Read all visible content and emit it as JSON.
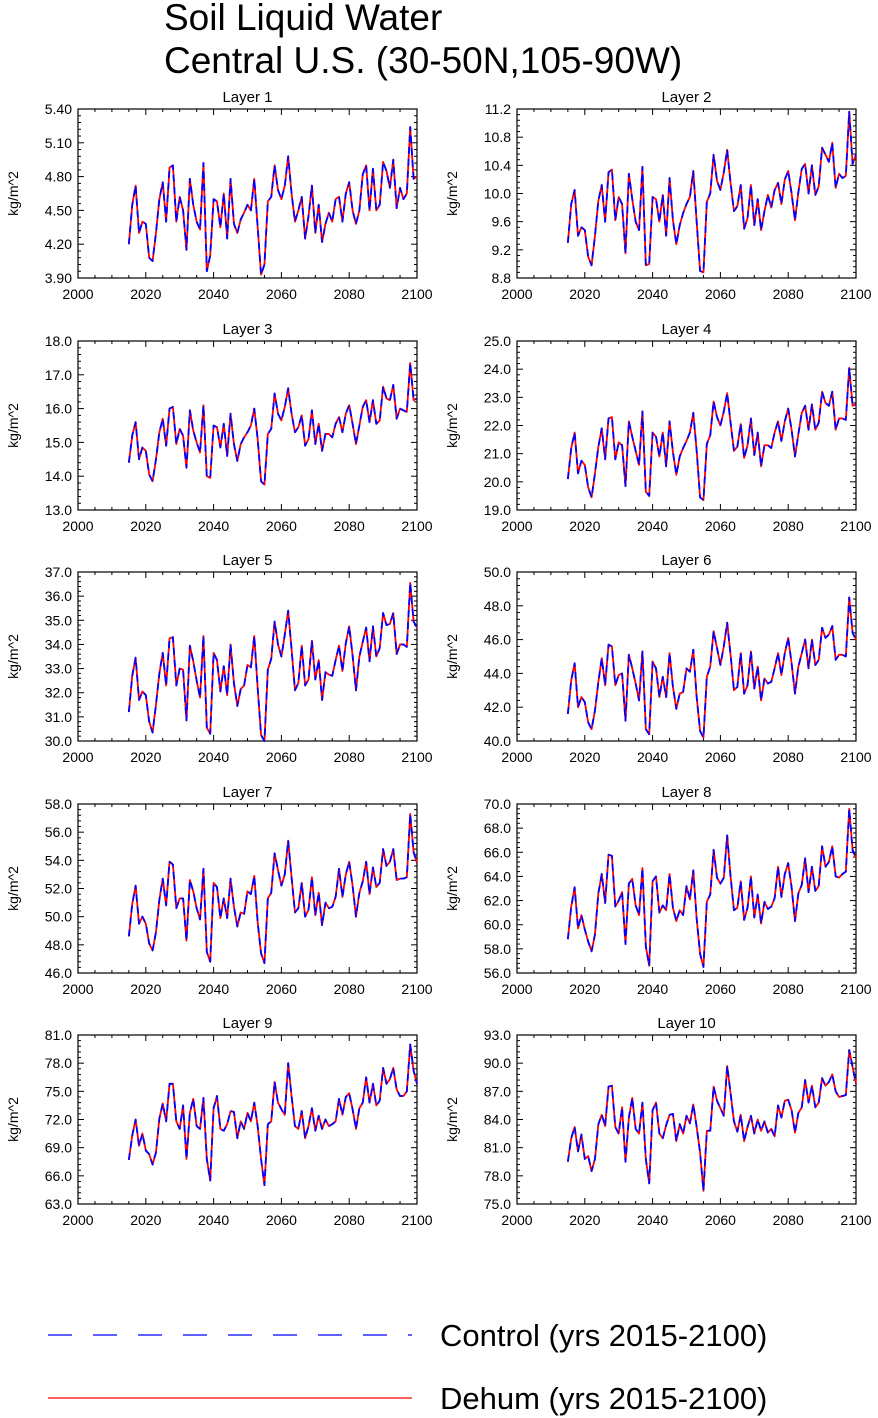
{
  "title_line1": "Soil Liquid Water",
  "title_line2": "Central U.S. (30-50N,105-90W)",
  "chart_data": {
    "type": "line",
    "x_label": "",
    "y_label": "kg/m^2",
    "xlim": [
      2000,
      2100
    ],
    "x_ticks": [
      2000,
      2020,
      2040,
      2060,
      2080,
      2100
    ],
    "x_tick_labels": [
      "2000",
      "2020",
      "2040",
      "2060",
      "2080",
      "2100"
    ],
    "years_start": 2015,
    "years_end": 2100,
    "legend_position": "bottom",
    "series_styles": [
      {
        "name": "Control (yrs 2015-2100)",
        "color": "#0000ff",
        "dash": "dashed"
      },
      {
        "name": "Dehum (yrs 2015-2100)",
        "color": "#ff0000",
        "dash": "solid"
      }
    ],
    "panels": [
      {
        "title": "Layer 1",
        "ylim": [
          3.9,
          5.4
        ],
        "y_ticks": [
          3.9,
          4.2,
          4.5,
          4.8,
          5.1,
          5.4
        ],
        "y_tick_labels": [
          "3.90",
          "4.20",
          "4.50",
          "4.80",
          "5.10",
          "5.40"
        ],
        "values": [
          4.2,
          4.55,
          4.72,
          4.3,
          4.4,
          4.38,
          4.08,
          4.05,
          4.3,
          4.6,
          4.75,
          4.4,
          4.88,
          4.9,
          4.4,
          4.62,
          4.5,
          4.15,
          4.78,
          4.55,
          4.4,
          4.33,
          4.92,
          3.96,
          4.1,
          4.6,
          4.58,
          4.35,
          4.65,
          4.25,
          4.78,
          4.38,
          4.3,
          4.42,
          4.48,
          4.55,
          4.5,
          4.78,
          4.35,
          3.93,
          4.02,
          4.58,
          4.62,
          4.9,
          4.68,
          4.6,
          4.72,
          4.98,
          4.65,
          4.4,
          4.5,
          4.62,
          4.25,
          4.45,
          4.72,
          4.3,
          4.55,
          4.22,
          4.38,
          4.48,
          4.4,
          4.6,
          4.62,
          4.4,
          4.65,
          4.75,
          4.5,
          4.38,
          4.5,
          4.82,
          4.9,
          4.5,
          4.87,
          4.5,
          4.55,
          4.93,
          4.85,
          4.7,
          4.95,
          4.52,
          4.7,
          4.6,
          4.65,
          5.24,
          4.78,
          4.8
        ]
      },
      {
        "title": "Layer 2",
        "ylim": [
          8.8,
          11.2
        ],
        "y_ticks": [
          8.8,
          9.2,
          9.6,
          10.0,
          10.4,
          10.8,
          11.2
        ],
        "y_tick_labels": [
          "8.8",
          "9.2",
          "9.6",
          "10.0",
          "10.4",
          "10.8",
          "11.2"
        ],
        "values": [
          9.3,
          9.85,
          10.05,
          9.4,
          9.52,
          9.48,
          9.1,
          8.98,
          9.4,
          9.9,
          10.12,
          9.6,
          10.3,
          10.34,
          9.62,
          9.95,
          9.85,
          9.15,
          10.28,
          9.92,
          9.6,
          9.48,
          10.38,
          8.98,
          9.0,
          9.95,
          9.92,
          9.6,
          9.98,
          9.4,
          10.22,
          9.62,
          9.28,
          9.55,
          9.72,
          9.85,
          9.95,
          10.32,
          9.6,
          8.9,
          8.88,
          9.88,
          10.0,
          10.55,
          10.18,
          10.05,
          10.3,
          10.62,
          10.15,
          9.75,
          9.82,
          10.12,
          9.5,
          9.65,
          10.12,
          9.55,
          9.92,
          9.48,
          9.75,
          9.98,
          9.8,
          10.05,
          10.15,
          9.85,
          10.2,
          10.32,
          10.0,
          9.62,
          10.02,
          10.35,
          10.42,
          10.0,
          10.4,
          9.98,
          10.1,
          10.65,
          10.55,
          10.45,
          10.72,
          10.08,
          10.28,
          10.22,
          10.25,
          11.16,
          10.42,
          10.55
        ]
      },
      {
        "title": "Layer 3",
        "ylim": [
          13.0,
          18.0
        ],
        "y_ticks": [
          13,
          14,
          15,
          16,
          17,
          18
        ],
        "y_tick_labels": [
          "13.0",
          "14.0",
          "15.0",
          "16.0",
          "17.0",
          "18.0"
        ],
        "values": [
          14.4,
          15.2,
          15.6,
          14.5,
          14.85,
          14.75,
          14.05,
          13.85,
          14.5,
          15.3,
          15.7,
          14.9,
          16.0,
          16.05,
          14.95,
          15.4,
          15.2,
          14.25,
          15.95,
          15.35,
          15.0,
          14.7,
          16.1,
          14.0,
          13.95,
          15.5,
          15.45,
          14.85,
          15.55,
          14.6,
          15.85,
          14.95,
          14.45,
          14.95,
          15.15,
          15.3,
          15.5,
          16.0,
          15.1,
          13.85,
          13.75,
          15.25,
          15.4,
          16.45,
          15.85,
          15.65,
          16.05,
          16.6,
          15.85,
          15.3,
          15.45,
          15.8,
          14.9,
          15.1,
          15.95,
          14.95,
          15.55,
          14.75,
          15.25,
          15.25,
          15.15,
          15.55,
          15.75,
          15.3,
          15.85,
          16.1,
          15.55,
          14.95,
          15.5,
          16.05,
          16.25,
          15.6,
          16.25,
          15.55,
          15.65,
          16.65,
          16.3,
          16.25,
          16.7,
          15.7,
          16.0,
          15.95,
          15.9,
          17.35,
          16.25,
          16.3
        ]
      },
      {
        "title": "Layer 4",
        "ylim": [
          19.0,
          25.0
        ],
        "y_ticks": [
          19,
          20,
          21,
          22,
          23,
          24,
          25
        ],
        "y_tick_labels": [
          "19.0",
          "20.0",
          "21.0",
          "22.0",
          "23.0",
          "24.0",
          "25.0"
        ],
        "values": [
          20.1,
          21.2,
          21.75,
          20.3,
          20.75,
          20.6,
          19.8,
          19.45,
          20.3,
          21.25,
          21.9,
          20.8,
          22.25,
          22.3,
          20.8,
          21.4,
          21.3,
          19.85,
          22.15,
          21.6,
          21.1,
          20.6,
          22.5,
          19.65,
          19.5,
          21.75,
          21.6,
          20.9,
          21.75,
          20.55,
          22.15,
          21.05,
          20.25,
          20.9,
          21.2,
          21.45,
          21.75,
          22.45,
          21.1,
          19.45,
          19.35,
          21.35,
          21.65,
          22.85,
          22.3,
          22.0,
          22.5,
          23.15,
          22.1,
          21.1,
          21.25,
          22.05,
          20.85,
          21.3,
          22.25,
          20.95,
          21.75,
          20.55,
          21.3,
          21.3,
          21.2,
          21.75,
          22.15,
          21.45,
          22.15,
          22.6,
          21.85,
          20.9,
          21.7,
          22.45,
          22.7,
          21.85,
          22.75,
          21.85,
          22.1,
          23.2,
          22.8,
          22.7,
          23.2,
          21.85,
          22.25,
          22.25,
          22.2,
          24.05,
          22.7,
          22.75
        ]
      },
      {
        "title": "Layer 5",
        "ylim": [
          30.0,
          37.0
        ],
        "y_ticks": [
          30,
          31,
          32,
          33,
          34,
          35,
          36,
          37
        ],
        "y_tick_labels": [
          "30.0",
          "31.0",
          "32.0",
          "33.0",
          "34.0",
          "35.0",
          "36.0",
          "37.0"
        ],
        "values": [
          31.2,
          32.7,
          33.45,
          31.7,
          32.05,
          31.9,
          30.8,
          30.35,
          31.5,
          32.8,
          33.65,
          32.3,
          34.25,
          34.3,
          32.3,
          33.0,
          32.95,
          30.85,
          33.95,
          33.3,
          32.5,
          31.8,
          34.35,
          30.55,
          30.3,
          33.65,
          33.35,
          32.05,
          33.1,
          31.9,
          34.0,
          32.4,
          31.45,
          32.15,
          32.3,
          33.15,
          33.05,
          34.35,
          32.2,
          30.25,
          30.0,
          32.95,
          33.4,
          34.95,
          34.0,
          33.5,
          34.4,
          35.4,
          33.8,
          32.1,
          32.4,
          33.95,
          32.3,
          32.55,
          34.15,
          32.55,
          33.35,
          31.7,
          32.85,
          32.75,
          32.7,
          33.35,
          33.95,
          32.9,
          34.05,
          34.75,
          33.55,
          32.1,
          33.5,
          34.1,
          34.7,
          33.3,
          34.75,
          33.5,
          33.85,
          35.3,
          34.8,
          34.85,
          35.3,
          33.6,
          34.0,
          34.0,
          33.9,
          36.55,
          34.95,
          34.7
        ]
      },
      {
        "title": "Layer 6",
        "ylim": [
          40.0,
          50.0
        ],
        "y_ticks": [
          40,
          42,
          44,
          46,
          48,
          50
        ],
        "y_tick_labels": [
          "40.0",
          "42.0",
          "44.0",
          "46.0",
          "48.0",
          "50.0"
        ],
        "values": [
          41.6,
          43.6,
          44.6,
          42.0,
          42.6,
          42.3,
          41.1,
          40.7,
          41.8,
          43.5,
          44.9,
          43.3,
          45.7,
          45.6,
          43.3,
          43.9,
          44.0,
          41.2,
          45.1,
          44.3,
          43.4,
          42.4,
          45.3,
          40.7,
          40.4,
          44.7,
          44.3,
          42.6,
          43.8,
          42.6,
          45.2,
          43.2,
          41.9,
          42.8,
          42.9,
          44.3,
          44.1,
          45.4,
          42.6,
          40.6,
          40.2,
          43.8,
          44.4,
          46.5,
          45.5,
          44.5,
          45.6,
          47.0,
          45.1,
          43.0,
          43.2,
          45.2,
          42.8,
          43.3,
          45.3,
          43.1,
          44.4,
          42.4,
          43.7,
          43.4,
          43.5,
          44.3,
          45.2,
          43.9,
          45.2,
          46.1,
          44.6,
          42.8,
          44.4,
          45.2,
          46.0,
          44.3,
          46.0,
          44.5,
          44.8,
          46.7,
          46.1,
          46.3,
          46.8,
          44.8,
          45.1,
          45.1,
          45.0,
          48.5,
          46.4,
          46.0
        ]
      },
      {
        "title": "Layer 7",
        "ylim": [
          46.0,
          58.0
        ],
        "y_ticks": [
          46,
          48,
          50,
          52,
          54,
          56,
          58
        ],
        "y_tick_labels": [
          "46.0",
          "48.0",
          "50.0",
          "52.0",
          "54.0",
          "56.0",
          "58.0"
        ],
        "values": [
          48.6,
          50.9,
          52.2,
          49.5,
          50.0,
          49.5,
          48.1,
          47.6,
          48.9,
          51.2,
          52.7,
          50.8,
          53.9,
          53.7,
          50.6,
          51.3,
          51.3,
          48.3,
          52.6,
          51.8,
          50.6,
          49.8,
          53.4,
          47.5,
          46.8,
          52.4,
          52.1,
          49.9,
          51.3,
          49.9,
          52.7,
          50.7,
          49.3,
          50.3,
          50.2,
          51.8,
          51.6,
          52.9,
          49.6,
          47.4,
          46.7,
          51.3,
          51.7,
          54.5,
          53.3,
          52.2,
          53.0,
          55.4,
          52.8,
          50.3,
          50.6,
          52.4,
          50.0,
          50.5,
          52.8,
          50.1,
          51.7,
          49.4,
          51.0,
          50.6,
          50.7,
          51.4,
          53.4,
          51.4,
          53.0,
          53.9,
          52.2,
          50.0,
          51.7,
          52.5,
          53.9,
          51.6,
          53.5,
          52.1,
          52.4,
          54.8,
          53.6,
          53.9,
          54.8,
          52.6,
          52.7,
          52.7,
          52.8,
          57.3,
          54.6,
          53.8
        ]
      },
      {
        "title": "Layer 8",
        "ylim": [
          56.0,
          70.0
        ],
        "y_ticks": [
          56,
          58,
          60,
          62,
          64,
          66,
          68,
          70
        ],
        "y_tick_labels": [
          "56.0",
          "58.0",
          "60.0",
          "62.0",
          "64.0",
          "66.0",
          "68.0",
          "70.0"
        ],
        "values": [
          58.8,
          61.5,
          63.1,
          59.7,
          60.8,
          59.6,
          58.6,
          57.8,
          59.2,
          62.6,
          64.2,
          61.8,
          65.8,
          65.7,
          61.5,
          62.0,
          62.7,
          58.4,
          63.4,
          63.8,
          61.6,
          60.8,
          64.7,
          58.2,
          56.6,
          63.6,
          64.0,
          61.0,
          61.6,
          61.2,
          64.2,
          61.4,
          60.3,
          61.2,
          60.8,
          63.2,
          62.1,
          64.5,
          60.5,
          57.6,
          56.5,
          61.9,
          62.5,
          66.2,
          63.9,
          63.4,
          63.9,
          67.4,
          64.0,
          61.2,
          61.4,
          63.6,
          60.4,
          61.4,
          64.0,
          60.6,
          62.5,
          60.1,
          61.9,
          61.3,
          61.5,
          62.2,
          64.8,
          62.3,
          64.2,
          65.1,
          63.1,
          60.3,
          62.6,
          63.3,
          65.5,
          62.7,
          64.8,
          62.8,
          63.2,
          66.5,
          64.8,
          65.2,
          66.5,
          64.0,
          63.9,
          64.2,
          64.4,
          69.6,
          66.2,
          65.5
        ]
      },
      {
        "title": "Layer 9",
        "ylim": [
          63.0,
          81.0
        ],
        "y_ticks": [
          63,
          66,
          69,
          72,
          75,
          78,
          81
        ],
        "y_tick_labels": [
          "63.0",
          "66.0",
          "69.0",
          "72.0",
          "75.0",
          "78.0",
          "81.0"
        ],
        "values": [
          67.7,
          70.3,
          72.0,
          69.2,
          70.5,
          68.7,
          68.3,
          67.2,
          68.5,
          72.1,
          73.7,
          71.8,
          75.8,
          75.8,
          71.8,
          71.0,
          73.5,
          67.8,
          72.7,
          74.2,
          71.3,
          71.0,
          74.3,
          67.8,
          65.5,
          73.2,
          74.5,
          71.0,
          70.8,
          71.5,
          72.9,
          72.8,
          70.0,
          71.8,
          71.0,
          72.7,
          71.8,
          73.8,
          71.3,
          67.8,
          65.0,
          71.5,
          71.8,
          76.0,
          73.8,
          73.1,
          72.5,
          78.0,
          74.5,
          71.3,
          71.0,
          72.9,
          70.0,
          71.3,
          73.2,
          70.8,
          72.4,
          71.0,
          72.0,
          71.3,
          71.5,
          71.8,
          74.2,
          72.5,
          74.4,
          74.8,
          73.1,
          71.0,
          73.2,
          73.8,
          76.5,
          73.8,
          75.8,
          73.5,
          74.0,
          77.5,
          75.8,
          76.3,
          77.5,
          75.2,
          74.5,
          74.5,
          75.0,
          80.0,
          77.2,
          75.8
        ]
      },
      {
        "title": "Layer 10",
        "ylim": [
          75.0,
          93.0
        ],
        "y_ticks": [
          75,
          78,
          81,
          84,
          87,
          90,
          93
        ],
        "y_tick_labels": [
          "75.0",
          "78.0",
          "81.0",
          "84.0",
          "87.0",
          "90.0",
          "93.0"
        ],
        "values": [
          79.5,
          82.0,
          83.2,
          80.6,
          82.4,
          79.8,
          80.1,
          78.5,
          79.8,
          83.5,
          84.5,
          83.3,
          87.5,
          87.6,
          83.2,
          82.5,
          85.3,
          79.5,
          84.2,
          86.3,
          83.0,
          82.5,
          85.8,
          79.8,
          77.2,
          85.0,
          85.8,
          82.5,
          82.0,
          83.4,
          84.5,
          84.6,
          81.7,
          83.5,
          82.5,
          84.4,
          83.6,
          85.6,
          83.2,
          80.5,
          76.4,
          82.8,
          82.8,
          87.5,
          86.0,
          85.2,
          84.4,
          89.7,
          86.8,
          83.8,
          82.7,
          84.5,
          81.7,
          83.2,
          84.4,
          82.5,
          84.0,
          82.8,
          83.8,
          82.6,
          83.0,
          82.2,
          85.5,
          84.2,
          86.0,
          86.1,
          85.0,
          82.6,
          84.7,
          85.3,
          88.2,
          85.8,
          87.6,
          85.3,
          85.8,
          88.4,
          87.6,
          88.0,
          88.8,
          87.0,
          86.4,
          86.5,
          86.6,
          91.4,
          89.6,
          87.8
        ]
      }
    ]
  }
}
